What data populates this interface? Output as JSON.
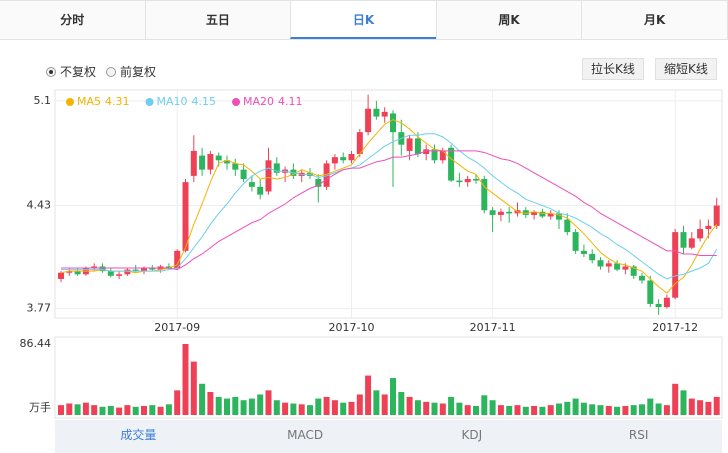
{
  "tabs": [
    "分时",
    "五日",
    "日K",
    "周K",
    "月K"
  ],
  "active_tab": 2,
  "adjust_options": [
    "不复权",
    "前复权"
  ],
  "checked_option": 0,
  "buttons": [
    "拉长K线",
    "缩短K线"
  ],
  "indicator_tabs": [
    "成交量",
    "MACD",
    "KDJ",
    "RSI"
  ],
  "active_indicator": 0,
  "chart_data": [
    {
      "type": "candlestick",
      "up_color": "#ee4156",
      "down_color": "#2db55d",
      "grid": true,
      "legend": "top-left",
      "categories": [
        null,
        null,
        null,
        null,
        null,
        null,
        null,
        null,
        null,
        null,
        null,
        null,
        null,
        null,
        "2017-09",
        null,
        null,
        null,
        null,
        null,
        null,
        null,
        null,
        null,
        null,
        null,
        null,
        null,
        null,
        null,
        null,
        null,
        null,
        null,
        null,
        "2017-10",
        null,
        null,
        null,
        null,
        null,
        null,
        null,
        null,
        null,
        null,
        null,
        null,
        null,
        null,
        null,
        null,
        "2017-11",
        null,
        null,
        null,
        null,
        null,
        null,
        null,
        null,
        null,
        null,
        null,
        null,
        null,
        null,
        null,
        null,
        null,
        null,
        null,
        null,
        null,
        "2017-12",
        null,
        null,
        null,
        null,
        null
      ],
      "open": [
        3.96,
        4.0,
        4.01,
        3.99,
        4.03,
        4.04,
        4.01,
        3.98,
        3.99,
        4.02,
        4.01,
        4.03,
        4.02,
        4.04,
        4.03,
        4.14,
        4.62,
        4.75,
        4.66,
        4.75,
        4.72,
        4.7,
        4.66,
        4.58,
        4.55,
        4.52,
        4.7,
        4.64,
        4.66,
        4.62,
        4.64,
        4.6,
        4.55,
        4.7,
        4.74,
        4.72,
        4.76,
        4.9,
        5.05,
        5.0,
        5.02,
        4.9,
        4.78,
        4.86,
        4.76,
        4.79,
        4.72,
        4.8,
        4.59,
        4.58,
        4.6,
        4.6,
        4.4,
        4.37,
        4.39,
        4.38,
        4.4,
        4.37,
        4.39,
        4.36,
        4.38,
        4.34,
        4.26,
        4.14,
        4.12,
        4.08,
        4.04,
        4.06,
        4.02,
        4.04,
        3.98,
        3.95,
        3.8,
        3.78,
        3.84,
        4.26,
        4.16,
        4.22,
        4.28,
        4.3
      ],
      "high": [
        4.01,
        4.03,
        4.03,
        4.04,
        4.06,
        4.06,
        4.03,
        4.01,
        4.03,
        4.05,
        4.04,
        4.05,
        4.05,
        4.06,
        4.15,
        4.6,
        4.88,
        4.8,
        4.78,
        4.77,
        4.75,
        4.73,
        4.7,
        4.62,
        4.6,
        4.8,
        4.74,
        4.68,
        4.7,
        4.66,
        4.67,
        4.63,
        4.72,
        4.76,
        4.77,
        4.78,
        4.92,
        5.14,
        5.1,
        5.06,
        5.04,
        4.98,
        4.88,
        4.9,
        4.82,
        4.82,
        4.8,
        4.82,
        4.64,
        4.62,
        4.63,
        4.62,
        4.42,
        4.41,
        4.42,
        4.45,
        4.42,
        4.4,
        4.41,
        4.4,
        4.4,
        4.38,
        4.28,
        4.18,
        4.15,
        4.1,
        4.08,
        4.08,
        4.06,
        4.05,
        4.0,
        3.98,
        3.83,
        3.86,
        4.28,
        4.3,
        4.26,
        4.34,
        4.34,
        4.48
      ],
      "low": [
        3.94,
        3.98,
        3.98,
        3.98,
        4.01,
        4.0,
        3.97,
        3.96,
        3.98,
        4.0,
        3.99,
        4.01,
        4.0,
        4.02,
        4.02,
        4.13,
        4.58,
        4.62,
        4.63,
        4.68,
        4.66,
        4.62,
        4.58,
        4.52,
        4.47,
        4.5,
        4.62,
        4.58,
        4.6,
        4.58,
        4.6,
        4.45,
        4.53,
        4.66,
        4.7,
        4.7,
        4.74,
        4.88,
        4.98,
        4.96,
        4.55,
        4.75,
        4.72,
        4.74,
        4.72,
        4.7,
        4.7,
        4.58,
        4.55,
        4.55,
        4.57,
        4.38,
        4.26,
        4.33,
        4.32,
        4.36,
        4.35,
        4.34,
        4.35,
        4.34,
        4.28,
        4.24,
        4.12,
        4.1,
        4.06,
        4.02,
        4.0,
        4.01,
        3.99,
        3.96,
        3.93,
        3.78,
        3.73,
        3.77,
        3.83,
        4.12,
        4.15,
        4.2,
        4.22,
        4.28
      ],
      "close": [
        4.0,
        4.01,
        3.99,
        4.03,
        4.04,
        4.01,
        3.98,
        3.99,
        4.02,
        4.01,
        4.03,
        4.02,
        4.04,
        4.03,
        4.14,
        4.58,
        4.78,
        4.66,
        4.76,
        4.72,
        4.7,
        4.66,
        4.6,
        4.55,
        4.5,
        4.72,
        4.64,
        4.66,
        4.62,
        4.64,
        4.62,
        4.55,
        4.7,
        4.74,
        4.72,
        4.76,
        4.9,
        5.05,
        5.0,
        5.03,
        4.9,
        4.82,
        4.86,
        4.76,
        4.79,
        4.72,
        4.78,
        4.59,
        4.58,
        4.6,
        4.59,
        4.4,
        4.37,
        4.39,
        4.38,
        4.4,
        4.37,
        4.39,
        4.36,
        4.38,
        4.34,
        4.26,
        4.14,
        4.12,
        4.08,
        4.04,
        4.06,
        4.02,
        4.04,
        3.98,
        3.95,
        3.8,
        3.78,
        3.84,
        4.26,
        4.16,
        4.22,
        4.28,
        4.3,
        4.43
      ],
      "series": [
        {
          "name": "MA5",
          "color": "#f5b400",
          "values": [
            4.0,
            4.01,
            4.01,
            4.01,
            4.01,
            4.02,
            4.01,
            4.01,
            4.01,
            4.0,
            4.01,
            4.01,
            4.02,
            4.03,
            4.05,
            4.16,
            4.31,
            4.44,
            4.58,
            4.7,
            4.72,
            4.7,
            4.69,
            4.65,
            4.6,
            4.61,
            4.6,
            4.61,
            4.63,
            4.66,
            4.64,
            4.62,
            4.63,
            4.65,
            4.67,
            4.69,
            4.76,
            4.83,
            4.89,
            4.95,
            4.98,
            4.96,
            4.92,
            4.87,
            4.83,
            4.79,
            4.78,
            4.73,
            4.69,
            4.65,
            4.63,
            4.55,
            4.51,
            4.47,
            4.43,
            4.39,
            4.38,
            4.39,
            4.38,
            4.38,
            4.37,
            4.35,
            4.3,
            4.25,
            4.19,
            4.13,
            4.09,
            4.06,
            4.05,
            4.03,
            4.01,
            3.96,
            3.91,
            3.87,
            3.93,
            3.97,
            4.05,
            4.15,
            4.24,
            4.31
          ]
        },
        {
          "name": "MA10",
          "color": "#6ccfef",
          "values": [
            4.02,
            4.02,
            4.02,
            4.02,
            4.02,
            4.02,
            4.01,
            4.01,
            4.01,
            4.01,
            4.01,
            4.01,
            4.01,
            4.02,
            4.03,
            4.09,
            4.16,
            4.23,
            4.31,
            4.38,
            4.44,
            4.51,
            4.57,
            4.62,
            4.65,
            4.67,
            4.65,
            4.65,
            4.64,
            4.63,
            4.63,
            4.61,
            4.62,
            4.64,
            4.66,
            4.67,
            4.69,
            4.73,
            4.77,
            4.81,
            4.84,
            4.86,
            4.88,
            4.88,
            4.89,
            4.89,
            4.87,
            4.83,
            4.78,
            4.74,
            4.71,
            4.67,
            4.62,
            4.58,
            4.54,
            4.51,
            4.47,
            4.45,
            4.43,
            4.41,
            4.38,
            4.37,
            4.35,
            4.32,
            4.29,
            4.25,
            4.22,
            4.18,
            4.15,
            4.11,
            4.07,
            4.03,
            3.99,
            3.96,
            3.98,
            3.99,
            4.01,
            4.03,
            4.06,
            4.15
          ]
        },
        {
          "name": "MA20",
          "color": "#ee4fb8",
          "values": [
            4.03,
            4.03,
            4.03,
            4.03,
            4.03,
            4.03,
            4.03,
            4.03,
            4.03,
            4.03,
            4.03,
            4.03,
            4.03,
            4.03,
            4.02,
            4.05,
            4.09,
            4.12,
            4.16,
            4.2,
            4.23,
            4.26,
            4.29,
            4.32,
            4.34,
            4.38,
            4.41,
            4.44,
            4.48,
            4.51,
            4.54,
            4.56,
            4.6,
            4.63,
            4.66,
            4.67,
            4.67,
            4.69,
            4.71,
            4.72,
            4.74,
            4.74,
            4.75,
            4.76,
            4.78,
            4.78,
            4.78,
            4.78,
            4.78,
            4.78,
            4.78,
            4.77,
            4.75,
            4.73,
            4.72,
            4.7,
            4.67,
            4.64,
            4.61,
            4.58,
            4.55,
            4.52,
            4.49,
            4.45,
            4.42,
            4.38,
            4.35,
            4.32,
            4.29,
            4.26,
            4.23,
            4.2,
            4.17,
            4.14,
            4.14,
            4.12,
            4.12,
            4.11,
            4.11,
            4.11
          ]
        }
      ],
      "ylim": [
        3.71,
        5.17
      ],
      "yticks": [
        3.77,
        4.43,
        5.1
      ]
    },
    {
      "type": "bar",
      "unit": "万手",
      "values": [
        12,
        14,
        13,
        15,
        12,
        10,
        11,
        9,
        12,
        10,
        11,
        12,
        10,
        13,
        30,
        86.44,
        65,
        38,
        28,
        22,
        20,
        22,
        18,
        20,
        25,
        30,
        18,
        15,
        14,
        13,
        12,
        20,
        22,
        18,
        15,
        16,
        25,
        48,
        30,
        25,
        45,
        28,
        22,
        18,
        16,
        15,
        14,
        22,
        15,
        12,
        11,
        24,
        18,
        12,
        11,
        12,
        10,
        11,
        10,
        12,
        14,
        16,
        20,
        15,
        13,
        12,
        11,
        10,
        11,
        12,
        13,
        20,
        14,
        12,
        38,
        30,
        20,
        18,
        16,
        22
      ],
      "ylim": [
        0,
        86.44
      ],
      "yticks": [
        86.44
      ]
    }
  ]
}
